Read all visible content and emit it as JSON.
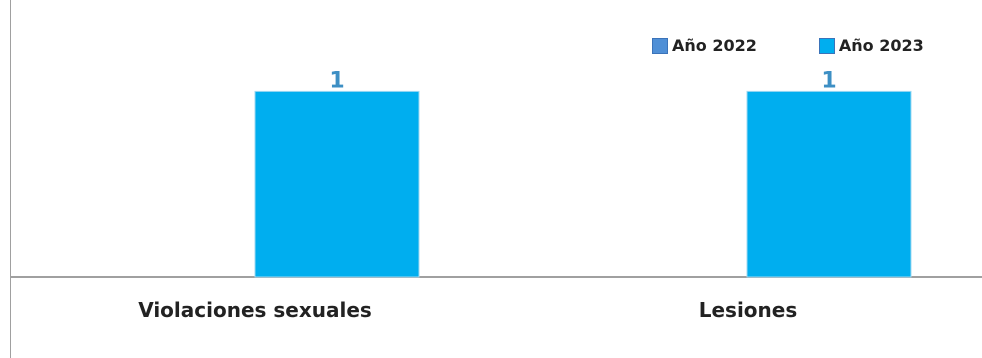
{
  "title": "",
  "legend": {
    "items": [
      {
        "label": "Año 2022",
        "color": "#4f8fd6"
      },
      {
        "label": "Año 2023",
        "color": "#00aeef"
      }
    ]
  },
  "chart_data": {
    "type": "bar",
    "categories": [
      "Violaciones sexuales",
      "Lesiones"
    ],
    "series": [
      {
        "name": "Año 2022",
        "values": [
          0,
          0
        ],
        "color": "#4f8fd6"
      },
      {
        "name": "Año 2023",
        "values": [
          1,
          1
        ],
        "color": "#00aeef"
      }
    ],
    "data_labels": [
      "1",
      "1"
    ],
    "ylim": [
      0,
      1.25
    ],
    "grid": false,
    "legend_position": "top-right"
  }
}
